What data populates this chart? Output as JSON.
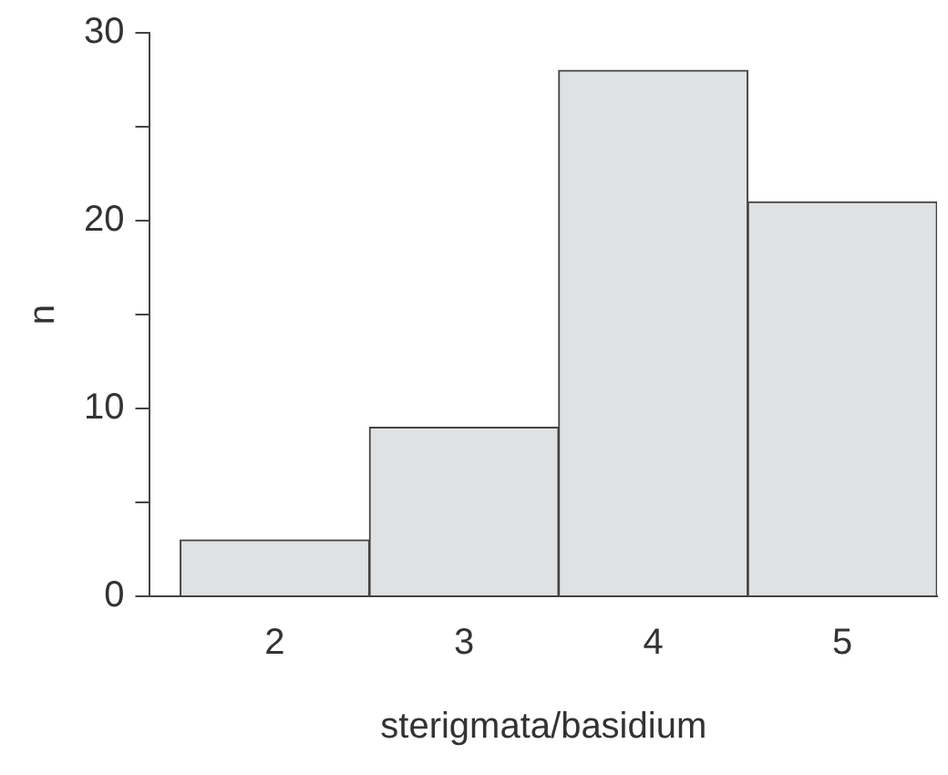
{
  "chart_data": {
    "type": "histogram",
    "xlabel": "sterigmata/basidium",
    "ylabel": "n",
    "bins": [
      1.5,
      2.5,
      3.5,
      4.5,
      5.5
    ],
    "values": [
      3,
      9,
      28,
      21
    ],
    "color": "#e0e1e3",
    "xlim": [
      1.34,
      5.5
    ],
    "xticks": [
      2,
      3,
      4,
      5
    ],
    "ylim": [
      0,
      30
    ],
    "yticks": [
      0,
      {
        "value": 5,
        "label": null
      },
      10,
      {
        "value": 15,
        "label": null
      },
      20,
      {
        "value": 25,
        "label": null
      },
      30
    ],
    "grid": false,
    "legend": false
  }
}
